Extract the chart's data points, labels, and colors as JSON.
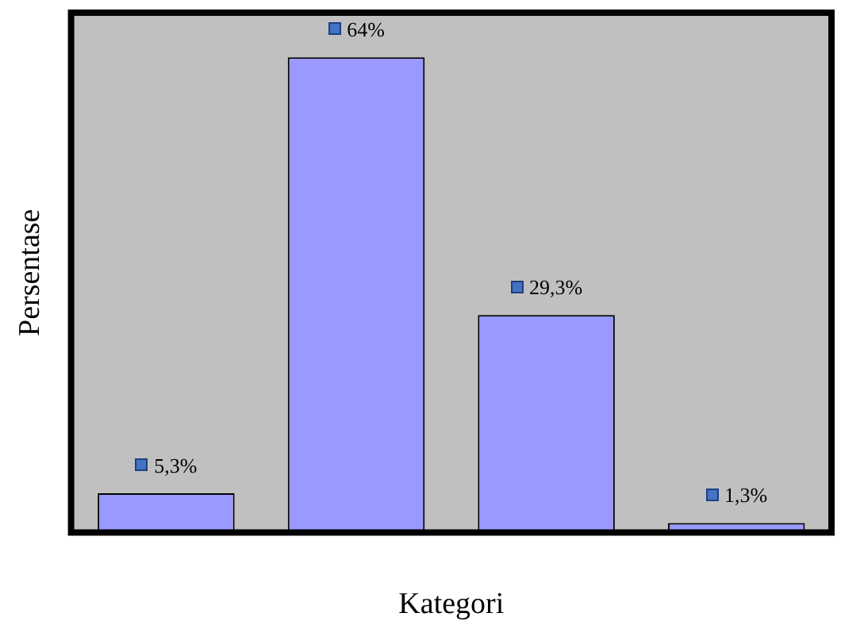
{
  "chart_data": {
    "type": "bar",
    "xlabel": "Kategori",
    "ylabel": "Persentase",
    "categories": [
      null,
      null,
      null,
      null
    ],
    "series": [
      {
        "color": "#9999ff",
        "values": [
          5.3,
          64,
          29.3,
          1.3
        ],
        "value_labels": [
          "5,3%",
          "64%",
          "29,3%",
          "1,3%"
        ]
      }
    ],
    "grid": false,
    "legend": false
  }
}
